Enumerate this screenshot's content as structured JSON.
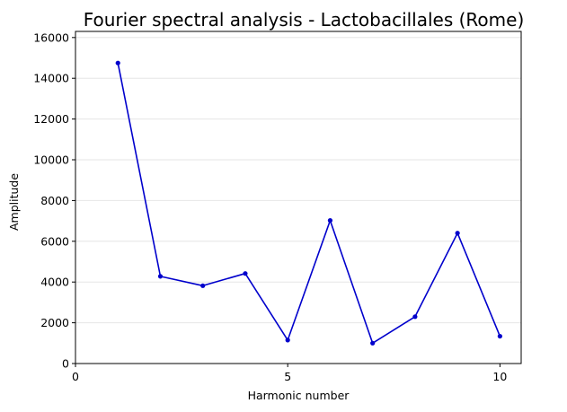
{
  "chart_data": {
    "type": "line",
    "title": "Fourier spectral analysis - Lactobacillales (Rome)",
    "xlabel": "Harmonic number",
    "ylabel": "Amplitude",
    "xlim": [
      0,
      10.5
    ],
    "ylim": [
      0,
      16300
    ],
    "xticks": [
      0,
      5,
      10
    ],
    "yticks": [
      0,
      2000,
      4000,
      6000,
      8000,
      10000,
      12000,
      14000,
      16000
    ],
    "grid": "horizontal",
    "series": [
      {
        "color": "#0000cc",
        "x": [
          1,
          2,
          3,
          4,
          5,
          6,
          7,
          8,
          9,
          10
        ],
        "y": [
          14750,
          4280,
          3820,
          4420,
          1150,
          7020,
          1000,
          2300,
          6400,
          1340
        ]
      }
    ]
  }
}
